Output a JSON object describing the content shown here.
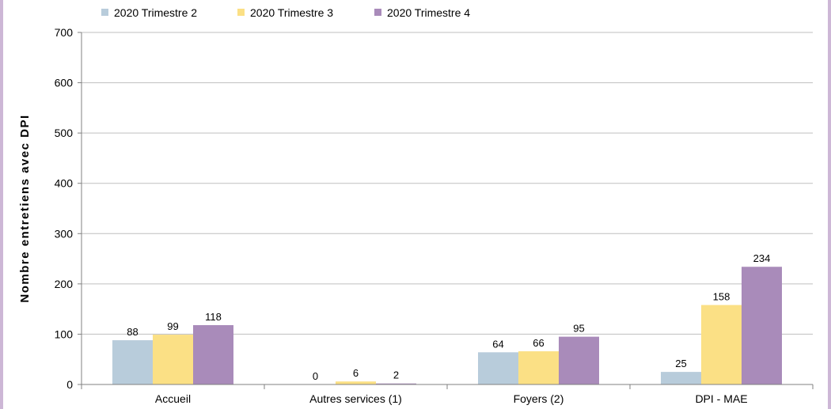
{
  "chart_data": {
    "type": "bar",
    "ylabel": "Nombre entretiens avec DPI",
    "ylim": [
      0,
      700
    ],
    "yticks": [
      0,
      100,
      200,
      300,
      400,
      500,
      600,
      700
    ],
    "grid": true,
    "legend_position": "top-left",
    "categories": [
      "Accueil",
      "Autres services (1)",
      "Foyers (2)",
      "DPI - MAE"
    ],
    "series": [
      {
        "name": "2020 Trimestre 2",
        "color": "#b8ccdb",
        "values": [
          88,
          0,
          64,
          25
        ]
      },
      {
        "name": "2020 Trimestre 3",
        "color": "#fbe085",
        "values": [
          99,
          6,
          66,
          158
        ]
      },
      {
        "name": "2020 Trimestre 4",
        "color": "#a98bba",
        "values": [
          118,
          2,
          95,
          234
        ]
      }
    ]
  }
}
